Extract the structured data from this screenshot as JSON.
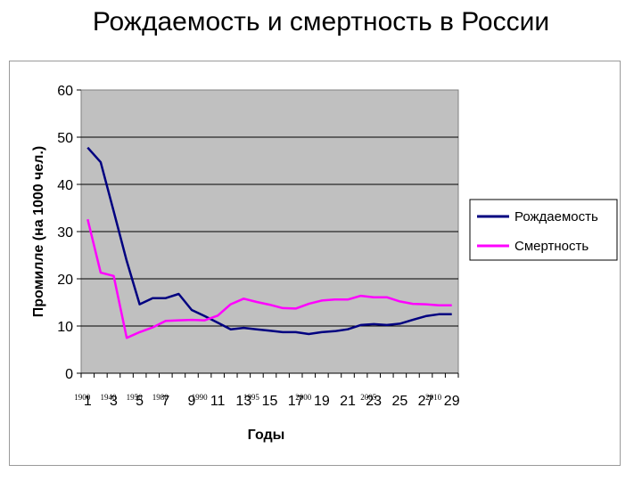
{
  "chart_data": {
    "type": "line",
    "title": "Рождаемость и смертность в России",
    "xlabel": "Годы",
    "ylabel": "Промилле (на 1000 чел.)",
    "ylim": [
      0,
      60
    ],
    "yticks": [
      "0",
      "10",
      "20",
      "30",
      "40",
      "50",
      "60"
    ],
    "x": [
      1,
      2,
      3,
      4,
      5,
      6,
      7,
      8,
      9,
      10,
      11,
      12,
      13,
      14,
      15,
      16,
      17,
      18,
      19,
      20,
      21,
      22,
      23,
      24,
      25,
      26,
      27,
      28,
      29
    ],
    "xticks": [
      "1",
      "3",
      "5",
      "7",
      "9",
      "11",
      "13",
      "15",
      "17",
      "19",
      "21",
      "23",
      "25",
      "27",
      "29"
    ],
    "year_labels": [
      {
        "x": 1,
        "label": "1900"
      },
      {
        "x": 3,
        "label": "1940"
      },
      {
        "x": 5,
        "label": "1950"
      },
      {
        "x": 7,
        "label": "1980"
      },
      {
        "x": 10,
        "label": "1990"
      },
      {
        "x": 14,
        "label": "1995"
      },
      {
        "x": 18,
        "label": "2000"
      },
      {
        "x": 23,
        "label": "2005"
      },
      {
        "x": 28,
        "label": "2010"
      }
    ],
    "series": [
      {
        "name": "Рождаемость",
        "color": "#000080",
        "values": [
          47.8,
          44.7,
          34.3,
          23.8,
          14.6,
          15.9,
          15.9,
          16.8,
          13.4,
          12.1,
          10.7,
          9.3,
          9.6,
          9.3,
          9.0,
          8.7,
          8.7,
          8.3,
          8.7,
          8.9,
          9.3,
          10.2,
          10.4,
          10.2,
          10.5,
          11.3,
          12.1,
          12.5,
          12.5
        ]
      },
      {
        "name": "Смертность",
        "color": "#ff00ff",
        "values": [
          32.6,
          21.3,
          20.6,
          7.5,
          8.7,
          9.7,
          11.1,
          11.2,
          11.3,
          11.2,
          12.2,
          14.6,
          15.8,
          15.1,
          14.5,
          13.8,
          13.7,
          14.7,
          15.4,
          15.6,
          15.6,
          16.4,
          16.1,
          16.1,
          15.2,
          14.7,
          14.6,
          14.4,
          14.4
        ]
      }
    ],
    "grid": true,
    "legend": "right",
    "plot_bg": "#c0c0c0"
  }
}
